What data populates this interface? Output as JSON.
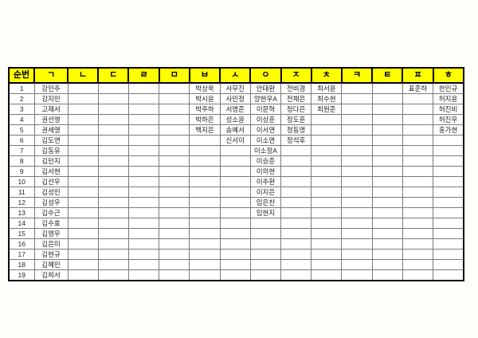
{
  "page": {
    "background": "#fffefb",
    "kind": "name-roster-by-initial-consonant"
  },
  "colors": {
    "header_bg": "#ffff00",
    "header_text": "#000000",
    "cell_text": "#222222",
    "grid": "#7a7a7a",
    "outer_border": "#000000"
  },
  "table": {
    "columns": [
      "순번",
      "ㄱ",
      "ㄴ",
      "ㄷ",
      "ㄹ",
      "ㅁ",
      "ㅂ",
      "ㅅ",
      "ㅇ",
      "ㅈ",
      "ㅊ",
      "ㅋ",
      "ㅌ",
      "ㅍ",
      "ㅎ"
    ],
    "rows": [
      [
        "1",
        "강민주",
        "",
        "",
        "",
        "",
        "박상욱",
        "사무진",
        "안태환",
        "전비경",
        "최서윤",
        "",
        "",
        "표준하",
        "한민규"
      ],
      [
        "2",
        "강지민",
        "",
        "",
        "",
        "",
        "박시윤",
        "사민정",
        "양현우A",
        "전채은",
        "최수현",
        "",
        "",
        "",
        "허지윤"
      ],
      [
        "3",
        "고재서",
        "",
        "",
        "",
        "",
        "박주하",
        "서명준",
        "이문혁",
        "정다은",
        "최원준",
        "",
        "",
        "",
        "허진비"
      ],
      [
        "4",
        "권선영",
        "",
        "",
        "",
        "",
        "박하은",
        "성소윤",
        "이상훈",
        "정도훈",
        "",
        "",
        "",
        "",
        "허진우"
      ],
      [
        "5",
        "권세영",
        "",
        "",
        "",
        "",
        "백지은",
        "송예서",
        "이서연",
        "정동명",
        "",
        "",
        "",
        "",
        "홍가현"
      ],
      [
        "6",
        "김도연",
        "",
        "",
        "",
        "",
        "",
        "신서이",
        "이소연",
        "정석후",
        "",
        "",
        "",
        "",
        ""
      ],
      [
        "7",
        "김동유",
        "",
        "",
        "",
        "",
        "",
        "",
        "이소정A",
        "",
        "",
        "",
        "",
        "",
        ""
      ],
      [
        "8",
        "김민지",
        "",
        "",
        "",
        "",
        "",
        "",
        "이승준",
        "",
        "",
        "",
        "",
        "",
        ""
      ],
      [
        "9",
        "김서현",
        "",
        "",
        "",
        "",
        "",
        "",
        "이의현",
        "",
        "",
        "",
        "",
        "",
        ""
      ],
      [
        "10",
        "김선우",
        "",
        "",
        "",
        "",
        "",
        "",
        "이주환",
        "",
        "",
        "",
        "",
        "",
        ""
      ],
      [
        "11",
        "김성민",
        "",
        "",
        "",
        "",
        "",
        "",
        "이지은",
        "",
        "",
        "",
        "",
        "",
        ""
      ],
      [
        "12",
        "김성우",
        "",
        "",
        "",
        "",
        "",
        "",
        "임은찬",
        "",
        "",
        "",
        "",
        "",
        ""
      ],
      [
        "13",
        "김수근",
        "",
        "",
        "",
        "",
        "",
        "",
        "임현지",
        "",
        "",
        "",
        "",
        "",
        ""
      ],
      [
        "14",
        "김수효",
        "",
        "",
        "",
        "",
        "",
        "",
        "",
        "",
        "",
        "",
        "",
        "",
        ""
      ],
      [
        "15",
        "김영우",
        "",
        "",
        "",
        "",
        "",
        "",
        "",
        "",
        "",
        "",
        "",
        "",
        ""
      ],
      [
        "16",
        "김은미",
        "",
        "",
        "",
        "",
        "",
        "",
        "",
        "",
        "",
        "",
        "",
        "",
        ""
      ],
      [
        "17",
        "김현규",
        "",
        "",
        "",
        "",
        "",
        "",
        "",
        "",
        "",
        "",
        "",
        "",
        ""
      ],
      [
        "18",
        "김혜민",
        "",
        "",
        "",
        "",
        "",
        "",
        "",
        "",
        "",
        "",
        "",
        "",
        ""
      ],
      [
        "19",
        "김희서",
        "",
        "",
        "",
        "",
        "",
        "",
        "",
        "",
        "",
        "",
        "",
        "",
        ""
      ]
    ]
  }
}
